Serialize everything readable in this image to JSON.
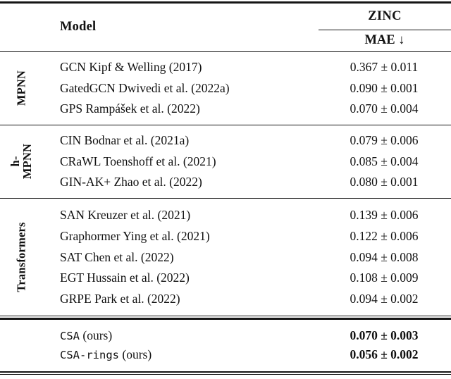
{
  "colors": {
    "background": "#ffffff",
    "text": "#111111",
    "rule": "#151515"
  },
  "table": {
    "header": {
      "model_label": "Model",
      "dataset_label": "ZINC",
      "metric_label": "MAE ↓"
    },
    "groups": [
      {
        "label": "MPNN",
        "label_lines": [
          "MPNN"
        ],
        "rows": [
          {
            "model": "GCN Kipf & Welling (2017)",
            "value": "0.367 ± 0.011"
          },
          {
            "model": "GatedGCN Dwivedi et al. (2022a)",
            "value": "0.090 ± 0.001"
          },
          {
            "model": "GPS Rampášek et al. (2022)",
            "value": "0.070 ± 0.004"
          }
        ]
      },
      {
        "label": "h-MPNN",
        "label_lines": [
          "h-",
          "MPNN"
        ],
        "rows": [
          {
            "model": "CIN Bodnar et al. (2021a)",
            "value": "0.079 ± 0.006"
          },
          {
            "model": "CRaWL Toenshoff et al. (2021)",
            "value": "0.085 ± 0.004"
          },
          {
            "model": "GIN-AK+ Zhao et al. (2022)",
            "value": "0.080 ± 0.001"
          }
        ]
      },
      {
        "label": "Transformers",
        "label_lines": [
          "Transformers"
        ],
        "rows": [
          {
            "model": "SAN Kreuzer et al. (2021)",
            "value": "0.139 ± 0.006"
          },
          {
            "model": "Graphormer Ying et al. (2021)",
            "value": "0.122 ± 0.006"
          },
          {
            "model": "SAT Chen et al. (2022)",
            "value": "0.094 ± 0.008"
          },
          {
            "model": "EGT Hussain et al. (2022)",
            "value": "0.108 ± 0.009"
          },
          {
            "model": "GRPE Park et al. (2022)",
            "value": "0.094 ± 0.002"
          }
        ]
      }
    ],
    "ours": {
      "rows": [
        {
          "model_mono": "CSA",
          "model_suffix": " (ours)",
          "value": "0.070 ± 0.003"
        },
        {
          "model_mono": "CSA-rings",
          "model_suffix": " (ours)",
          "value": "0.056 ± 0.002"
        }
      ]
    }
  }
}
